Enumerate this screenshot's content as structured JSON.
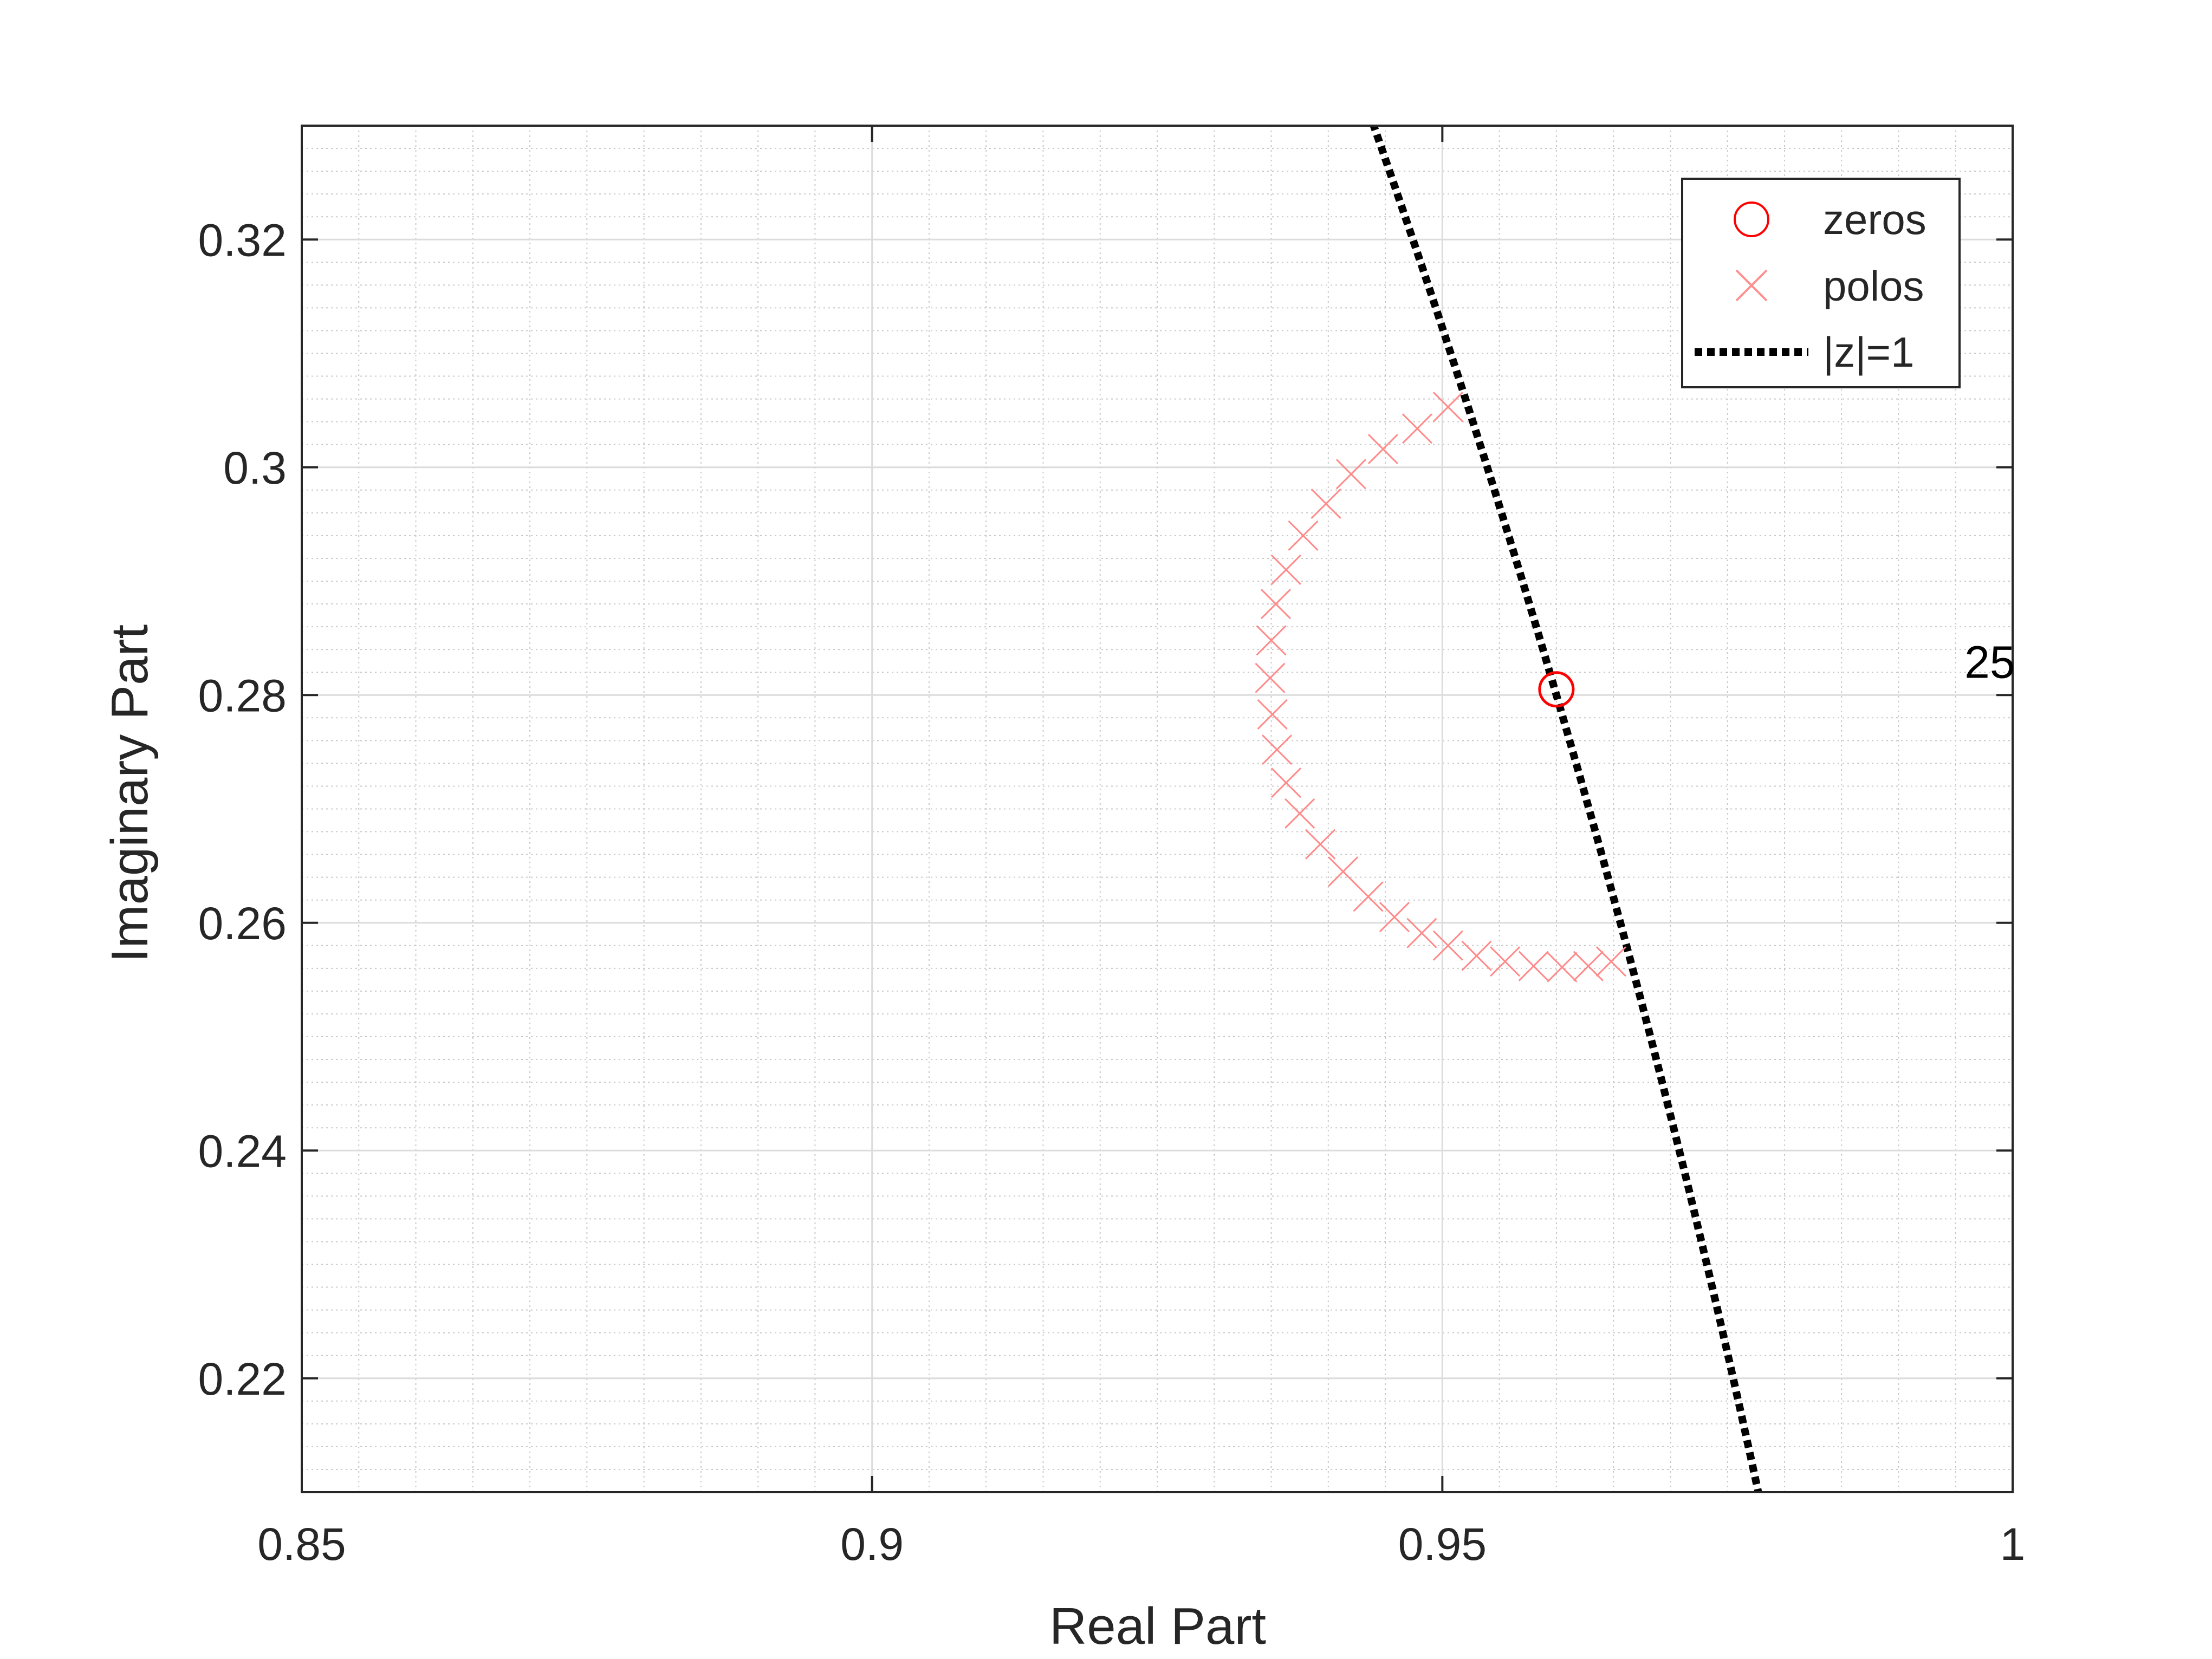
{
  "chart_data": {
    "type": "scatter",
    "title": "",
    "xlabel": "Real Part",
    "ylabel": "Imaginary Part",
    "xlim": [
      0.85,
      1.0
    ],
    "ylim": [
      0.21,
      0.33
    ],
    "xticks": [
      0.85,
      0.9,
      0.95,
      1.0
    ],
    "xtick_labels": [
      "0.85",
      "0.9",
      "0.95",
      "1"
    ],
    "yticks": [
      0.22,
      0.24,
      0.26,
      0.28,
      0.3,
      0.32
    ],
    "ytick_labels": [
      "0.22",
      "0.24",
      "0.26",
      "0.28",
      "0.3",
      "0.32"
    ],
    "grid": "major and minor",
    "legend_position": "top-right",
    "series": [
      {
        "name": "zeros",
        "marker": "circle",
        "color": "#ff0000",
        "points": [
          [
            0.96,
            0.2805
          ]
        ]
      },
      {
        "name": "polos",
        "marker": "x",
        "color": "#ff0000",
        "points": [
          [
            0.9505,
            0.3053
          ],
          [
            0.9478,
            0.3034
          ],
          [
            0.9448,
            0.3016
          ],
          [
            0.942,
            0.2994
          ],
          [
            0.9398,
            0.2968
          ],
          [
            0.9378,
            0.294
          ],
          [
            0.9363,
            0.291
          ],
          [
            0.9354,
            0.288
          ],
          [
            0.935,
            0.2848
          ],
          [
            0.9349,
            0.2815
          ],
          [
            0.9351,
            0.2783
          ],
          [
            0.9355,
            0.2752
          ],
          [
            0.9363,
            0.2723
          ],
          [
            0.9375,
            0.2696
          ],
          [
            0.9393,
            0.2669
          ],
          [
            0.9413,
            0.2645
          ],
          [
            0.9435,
            0.2623
          ],
          [
            0.9458,
            0.2605
          ],
          [
            0.9482,
            0.2591
          ],
          [
            0.9505,
            0.258
          ],
          [
            0.953,
            0.2571
          ],
          [
            0.9555,
            0.2566
          ],
          [
            0.958,
            0.2562
          ],
          [
            0.9605,
            0.2561
          ],
          [
            0.9628,
            0.2562
          ],
          [
            0.9648,
            0.2566
          ]
        ]
      },
      {
        "name": "|z|=1",
        "type": "line",
        "style": "dotted",
        "color": "#000000",
        "function": "unit_circle"
      }
    ],
    "annotations": [
      {
        "text": "25",
        "x": 0.998,
        "y": 0.2815
      }
    ]
  }
}
